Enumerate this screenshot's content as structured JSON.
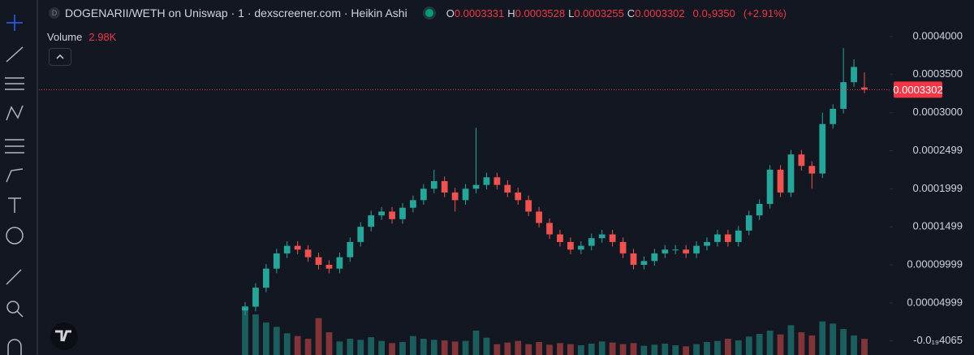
{
  "header": {
    "title": "DOGENARII/WETH on Uniswap · 1 · dexscreener.com · Heikin Ashi",
    "ohlc": [
      {
        "key": "O",
        "value": 0.0003331
      },
      {
        "key": "H",
        "value": 0.0003528
      },
      {
        "key": "L",
        "value": 0.0003255
      },
      {
        "key": "C",
        "value": 0.0003302
      }
    ],
    "change": "0.0₅9350",
    "change_pct": "(+2.91%)",
    "volume_label": "Volume",
    "volume_value": "2.98K"
  },
  "chart_data": {
    "type": "candlestick",
    "open": [
      4e-05,
      4.5e-05,
      7e-05,
      9.5e-05,
      0.000115,
      0.000125,
      0.00012,
      0.00011,
      0.0001,
      9.5e-05,
      0.00011,
      0.00013,
      0.00015,
      0.000165,
      0.00017,
      0.00016,
      0.000175,
      0.000185,
      0.0002,
      0.00021,
      0.000195,
      0.000185,
      0.0002,
      0.000205,
      0.000215,
      0.000205,
      0.000195,
      0.000185,
      0.00017,
      0.000155,
      0.00014,
      0.00013,
      0.00012,
      0.000125,
      0.000135,
      0.00014,
      0.00013,
      0.000115,
      0.0001,
      0.000105,
      0.000115,
      0.00012,
      0.00012,
      0.000115,
      0.000125,
      0.00013,
      0.00014,
      0.00013,
      0.000145,
      0.000165,
      0.00018,
      0.000225,
      0.000195,
      0.000245,
      0.00023,
      0.00022,
      0.000285,
      0.000305,
      0.00034,
      0.0003331
    ],
    "high": [
      5.1e-05,
      7.6e-05,
      0.000101,
      0.000121,
      0.000131,
      0.000131,
      0.000126,
      0.000116,
      0.000106,
      0.000116,
      0.000136,
      0.000156,
      0.000171,
      0.000176,
      0.000176,
      0.000181,
      0.000191,
      0.000206,
      0.000225,
      0.000216,
      0.000201,
      0.000206,
      0.00028,
      0.000221,
      0.000221,
      0.000211,
      0.000201,
      0.000191,
      0.000176,
      0.000161,
      0.000146,
      0.000136,
      0.000131,
      0.000141,
      0.000146,
      0.000146,
      0.000136,
      0.000121,
      0.000111,
      0.000121,
      0.000126,
      0.000126,
      0.000126,
      0.000131,
      0.000136,
      0.000146,
      0.000146,
      0.000151,
      0.000171,
      0.000186,
      0.000231,
      0.000231,
      0.000251,
      0.000251,
      0.000236,
      0.0003,
      0.000311,
      0.000385,
      0.00037,
      0.0003528
    ],
    "low": [
      3.4e-05,
      3.9e-05,
      6.4e-05,
      8.9e-05,
      0.000109,
      0.000114,
      0.000104,
      9.4e-05,
      8.9e-05,
      8.9e-05,
      0.000104,
      0.000124,
      0.000144,
      0.000159,
      0.000154,
      0.000154,
      0.000169,
      0.000179,
      0.000194,
      0.000189,
      0.00017,
      0.000179,
      0.000194,
      0.000199,
      0.000199,
      0.000189,
      0.000179,
      0.000164,
      0.000149,
      0.000134,
      0.000124,
      0.000114,
      0.000114,
      0.000119,
      0.000129,
      0.000124,
      0.000109,
      9.4e-05,
      9.4e-05,
      9.9e-05,
      0.000109,
      0.000114,
      0.000109,
      0.000109,
      0.000119,
      0.000124,
      0.000124,
      0.000124,
      0.000139,
      0.000159,
      0.000174,
      0.000189,
      0.000189,
      0.000224,
      0.0002,
      0.000214,
      0.000279,
      0.000299,
      0.000334,
      0.0003255
    ],
    "close": [
      4.5e-05,
      7e-05,
      9.5e-05,
      0.000115,
      0.000125,
      0.00012,
      0.00011,
      0.0001,
      9.5e-05,
      0.00011,
      0.00013,
      0.00015,
      0.000165,
      0.00017,
      0.00016,
      0.000175,
      0.000185,
      0.0002,
      0.00021,
      0.000195,
      0.000185,
      0.0002,
      0.000205,
      0.000215,
      0.000205,
      0.000195,
      0.000185,
      0.00017,
      0.000155,
      0.00014,
      0.00013,
      0.00012,
      0.000125,
      0.000135,
      0.00014,
      0.00013,
      0.000115,
      0.0001,
      0.000105,
      0.000115,
      0.00012,
      0.00012,
      0.000115,
      0.000125,
      0.00013,
      0.00014,
      0.00013,
      0.000145,
      0.000165,
      0.00018,
      0.000225,
      0.000195,
      0.000245,
      0.00023,
      0.00022,
      0.000285,
      0.000305,
      0.00034,
      0.00036,
      0.0003302
    ],
    "volume": [
      9000,
      7500,
      6000,
      5200,
      4000,
      3500,
      3000,
      6800,
      4200,
      2500,
      3000,
      2800,
      3300,
      2600,
      2200,
      2400,
      3500,
      3000,
      2800,
      2700,
      2500,
      2600,
      4500,
      3200,
      2000,
      2300,
      2600,
      2000,
      2400,
      1900,
      2200,
      2000,
      1800,
      2100,
      2500,
      2300,
      2000,
      2200,
      1700,
      1900,
      2100,
      1800,
      1600,
      2000,
      2400,
      2600,
      3000,
      2700,
      3400,
      3900,
      4500,
      3800,
      5500,
      4200,
      3600,
      6200,
      5800,
      4800,
      3600,
      2980
    ],
    "up_color": "#26a69a",
    "down_color": "#ef5350",
    "ylim": [
      -1.85e-05,
      0.000448
    ],
    "yticks": [
      {
        "value": 0.0004,
        "label": "0.0004000"
      },
      {
        "value": 0.00035,
        "label": "0.0003500"
      },
      {
        "value": 0.0003,
        "label": "0.0003000"
      },
      0.0002499,
      0.0001999,
      0.0001499,
      9.999e-05,
      4.999e-05,
      {
        "value": -4.065e-20,
        "label": "-0.0₁₉4065"
      }
    ],
    "last_price": 0.0003302,
    "grid": false
  }
}
